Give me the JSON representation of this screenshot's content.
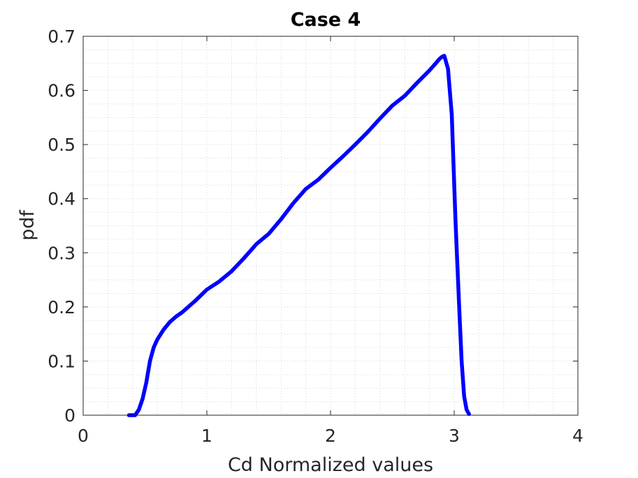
{
  "chart_data": {
    "type": "line",
    "title": "Case 4",
    "xlabel": "Cd Normalized values",
    "ylabel": "pdf",
    "xlim": [
      0,
      4
    ],
    "ylim": [
      0,
      0.7
    ],
    "xticks": [
      "0",
      "1",
      "2",
      "3",
      "4"
    ],
    "yticks": [
      "0",
      "0.1",
      "0.2",
      "0.3",
      "0.4",
      "0.5",
      "0.6",
      "0.7"
    ],
    "grid": "minor dotted",
    "series": [
      {
        "color": "#0000ff",
        "x": [
          0.37,
          0.42,
          0.45,
          0.48,
          0.51,
          0.54,
          0.57,
          0.6,
          0.65,
          0.7,
          0.75,
          0.8,
          0.9,
          1.0,
          1.1,
          1.2,
          1.3,
          1.4,
          1.5,
          1.6,
          1.7,
          1.8,
          1.9,
          2.0,
          2.1,
          2.2,
          2.3,
          2.4,
          2.5,
          2.6,
          2.7,
          2.8,
          2.85,
          2.88,
          2.9,
          2.92,
          2.95,
          2.98,
          3.01,
          3.04,
          3.06,
          3.08,
          3.1,
          3.12
        ],
        "y": [
          0.0,
          0.0,
          0.01,
          0.03,
          0.06,
          0.1,
          0.125,
          0.14,
          0.158,
          0.172,
          0.182,
          0.19,
          0.21,
          0.232,
          0.247,
          0.266,
          0.29,
          0.316,
          0.335,
          0.362,
          0.392,
          0.418,
          0.435,
          0.457,
          0.478,
          0.5,
          0.523,
          0.548,
          0.572,
          0.59,
          0.614,
          0.637,
          0.65,
          0.658,
          0.662,
          0.664,
          0.64,
          0.555,
          0.36,
          0.2,
          0.1,
          0.035,
          0.01,
          0.002
        ]
      }
    ]
  }
}
